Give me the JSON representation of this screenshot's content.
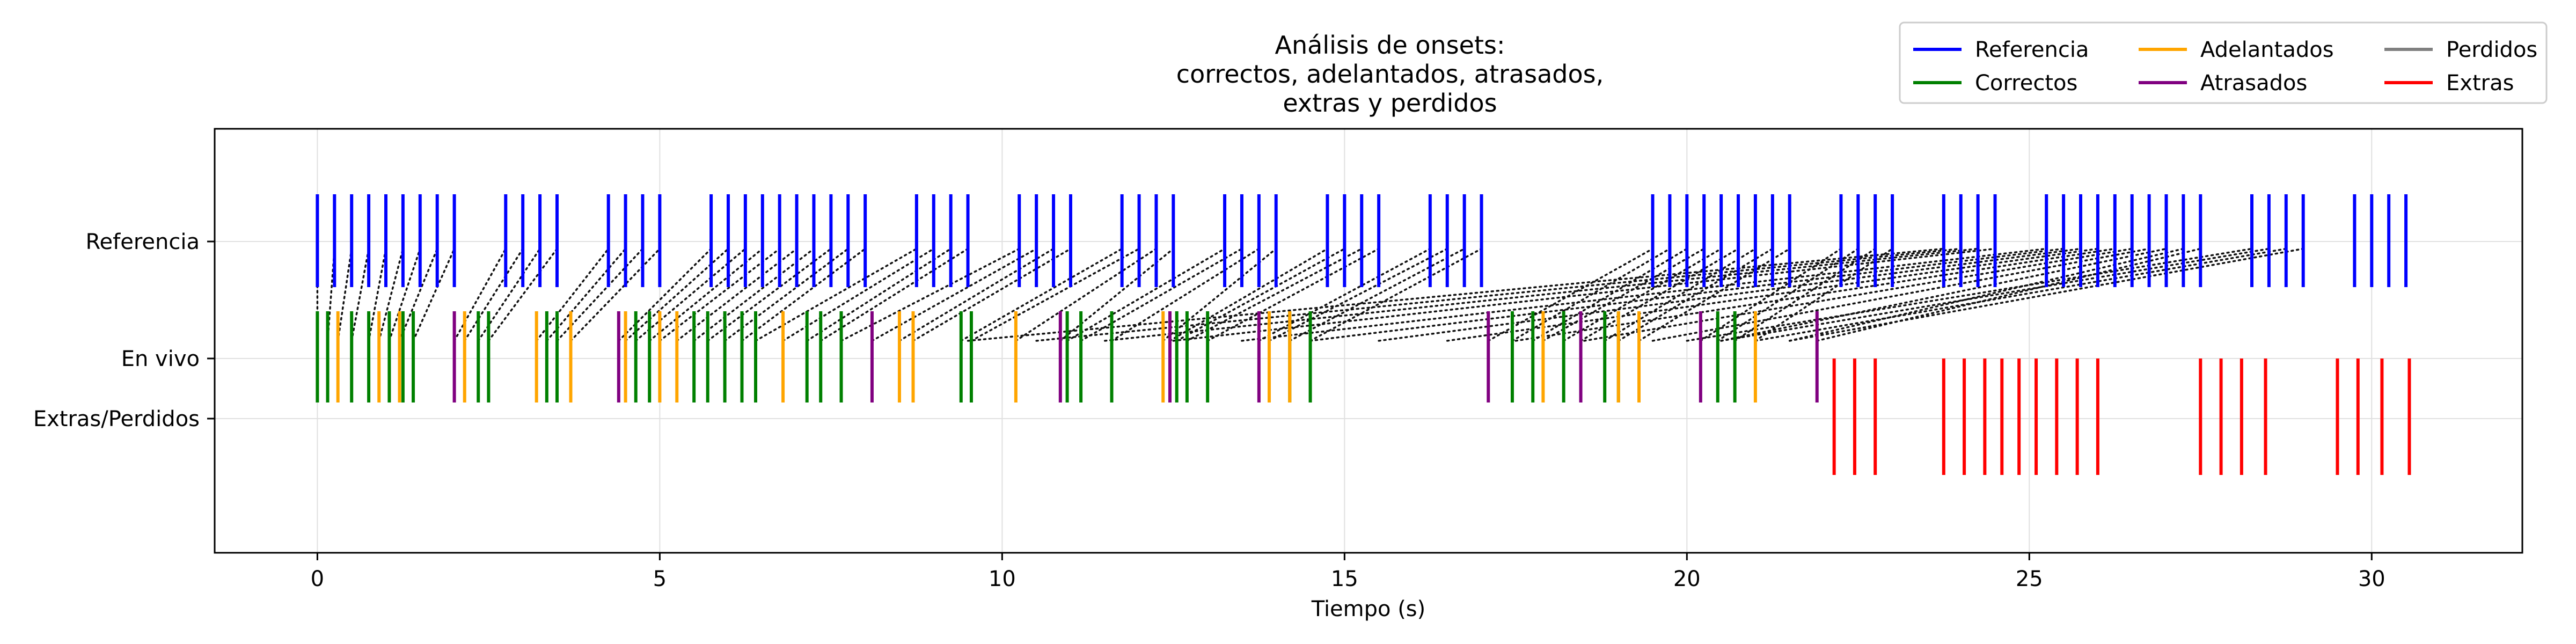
{
  "chart_data": {
    "type": "event-plot",
    "title": [
      "Análisis de onsets:",
      "correctos, adelantados, atrasados,",
      "extras y perdidos"
    ],
    "xlabel": "Tiempo (s)",
    "ylabel": "",
    "xlim": [
      -1.5,
      32.2
    ],
    "xticks": [
      0,
      5,
      10,
      15,
      20,
      25,
      30
    ],
    "ytick_labels": [
      "Referencia",
      "En vivo",
      "Extras/Perdidos"
    ],
    "grid": true,
    "legend": {
      "position": "top-right",
      "entries": [
        {
          "label": "Referencia",
          "color": "#0000ff"
        },
        {
          "label": "Correctos",
          "color": "#008000"
        },
        {
          "label": "Adelantados",
          "color": "#ffa500"
        },
        {
          "label": "Atrasados",
          "color": "#800080"
        },
        {
          "label": "Perdidos",
          "color": "#808080"
        },
        {
          "label": "Extras",
          "color": "#ff0000"
        }
      ]
    },
    "series": [
      {
        "name": "Referencia",
        "color": "#0000ff",
        "row": "Referencia",
        "x": [
          0.0,
          0.25,
          0.5,
          0.75,
          1.0,
          1.25,
          1.5,
          1.75,
          2.0,
          2.75,
          3.0,
          3.25,
          3.5,
          4.25,
          4.5,
          4.75,
          5.0,
          5.75,
          6.0,
          6.25,
          6.5,
          6.75,
          7.0,
          7.25,
          7.5,
          7.75,
          8.0,
          8.75,
          9.0,
          9.25,
          9.5,
          10.25,
          10.5,
          10.75,
          11.0,
          11.75,
          12.0,
          12.25,
          12.5,
          13.25,
          13.5,
          13.75,
          14.0,
          14.75,
          15.0,
          15.25,
          15.5,
          16.25,
          16.5,
          16.75,
          17.0,
          19.5,
          19.75,
          20.0,
          20.25,
          20.5,
          20.75,
          21.0,
          21.25,
          21.5,
          22.25,
          22.5,
          22.75,
          23.0,
          23.75,
          24.0,
          24.25,
          24.5,
          25.25,
          25.5,
          25.75,
          26.0,
          26.25,
          26.5,
          26.75,
          27.0,
          27.25,
          27.5,
          28.25,
          28.5,
          28.75,
          29.0,
          29.75,
          30.0,
          30.25,
          30.5
        ]
      },
      {
        "name": "Correctos",
        "color": "#008000",
        "row": "En vivo",
        "x": [
          0.0,
          0.15,
          0.5,
          0.75,
          1.05,
          1.25,
          1.4,
          2.35,
          2.5,
          3.35,
          3.5,
          4.65,
          4.85,
          5.5,
          5.7,
          5.95,
          6.2,
          6.4,
          7.15,
          7.35,
          7.65,
          9.4,
          9.55,
          10.95,
          11.15,
          11.6,
          12.55,
          12.7,
          13.0,
          14.2,
          14.5,
          17.45,
          17.75,
          18.2,
          18.8,
          19.0,
          20.45,
          20.7
        ]
      },
      {
        "name": "Adelantados",
        "color": "#ffa500",
        "row": "En vivo",
        "x": [
          0.3,
          0.9,
          1.2,
          2.15,
          3.2,
          3.7,
          4.5,
          5.0,
          5.25,
          6.8,
          8.5,
          8.7,
          10.2,
          12.35,
          13.9,
          14.2,
          17.9,
          19.0,
          19.3,
          21.0
        ]
      },
      {
        "name": "Atrasados",
        "color": "#800080",
        "row": "En vivo",
        "x": [
          2.0,
          4.4,
          8.1,
          10.85,
          12.45,
          13.75,
          17.1,
          18.45,
          20.2,
          21.9
        ]
      },
      {
        "name": "Extras",
        "color": "#ff0000",
        "row": "Extras/Perdidos",
        "x": [
          22.15,
          22.45,
          22.75,
          23.75,
          24.05,
          24.35,
          24.6,
          24.85,
          25.1,
          25.4,
          25.7,
          26.0,
          27.5,
          27.8,
          28.1,
          28.45,
          29.5,
          29.8,
          30.15,
          30.55
        ]
      }
    ],
    "links": [
      [
        0.0,
        0.0
      ],
      [
        0.15,
        0.25
      ],
      [
        0.3,
        0.5
      ],
      [
        0.5,
        0.75
      ],
      [
        0.75,
        1.0
      ],
      [
        0.9,
        1.25
      ],
      [
        1.05,
        1.5
      ],
      [
        1.2,
        1.75
      ],
      [
        1.4,
        2.0
      ],
      [
        2.0,
        2.75
      ],
      [
        2.15,
        3.0
      ],
      [
        2.35,
        3.25
      ],
      [
        2.5,
        3.5
      ],
      [
        3.2,
        4.25
      ],
      [
        3.35,
        4.5
      ],
      [
        3.5,
        4.75
      ],
      [
        3.7,
        5.0
      ],
      [
        4.4,
        5.75
      ],
      [
        4.5,
        6.0
      ],
      [
        4.65,
        6.25
      ],
      [
        4.85,
        6.5
      ],
      [
        5.0,
        6.75
      ],
      [
        5.25,
        7.0
      ],
      [
        5.5,
        7.25
      ],
      [
        5.7,
        7.5
      ],
      [
        5.95,
        7.75
      ],
      [
        6.2,
        8.0
      ],
      [
        6.4,
        8.75
      ],
      [
        6.8,
        9.0
      ],
      [
        7.15,
        9.25
      ],
      [
        7.35,
        9.5
      ],
      [
        7.65,
        10.25
      ],
      [
        8.1,
        10.5
      ],
      [
        8.5,
        10.75
      ],
      [
        8.7,
        11.0
      ],
      [
        9.4,
        11.75
      ],
      [
        9.55,
        12.0
      ],
      [
        10.2,
        12.25
      ],
      [
        10.85,
        12.5
      ],
      [
        10.95,
        13.25
      ],
      [
        11.15,
        13.5
      ],
      [
        11.6,
        13.75
      ],
      [
        12.35,
        14.0
      ],
      [
        12.45,
        14.75
      ],
      [
        12.55,
        15.0
      ],
      [
        12.7,
        15.25
      ],
      [
        13.0,
        15.5
      ],
      [
        13.75,
        16.25
      ],
      [
        13.9,
        16.5
      ],
      [
        14.2,
        16.75
      ],
      [
        14.5,
        17.0
      ],
      [
        17.1,
        19.5
      ],
      [
        17.45,
        19.75
      ],
      [
        17.75,
        20.0
      ],
      [
        17.9,
        20.25
      ],
      [
        18.2,
        20.5
      ],
      [
        18.45,
        20.75
      ],
      [
        18.8,
        21.0
      ],
      [
        19.0,
        21.25
      ],
      [
        19.3,
        21.5
      ],
      [
        20.2,
        22.25
      ],
      [
        20.45,
        22.5
      ],
      [
        20.7,
        22.75
      ],
      [
        21.0,
        23.0
      ],
      [
        9.5,
        23.75
      ],
      [
        10.5,
        24.0
      ],
      [
        11.5,
        24.25
      ],
      [
        12.5,
        24.5
      ],
      [
        13.5,
        25.25
      ],
      [
        14.5,
        25.5
      ],
      [
        15.5,
        25.75
      ],
      [
        16.5,
        26.0
      ],
      [
        17.5,
        26.25
      ],
      [
        18.5,
        26.5
      ],
      [
        19.5,
        26.75
      ],
      [
        20.5,
        27.0
      ],
      [
        21.5,
        27.25
      ],
      [
        21.9,
        27.5
      ],
      [
        20.0,
        28.25
      ],
      [
        20.5,
        28.5
      ],
      [
        21.0,
        28.75
      ],
      [
        21.5,
        29.0
      ]
    ]
  }
}
